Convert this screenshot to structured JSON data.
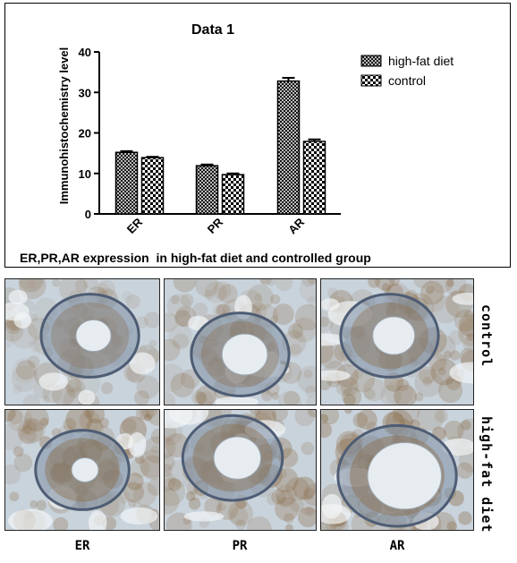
{
  "chart_data": {
    "type": "bar",
    "title": "Data 1",
    "ylabel": "Immunohistochemistry level",
    "xlabel": "",
    "ylim": [
      0,
      40
    ],
    "yticks": [
      0,
      10,
      20,
      30,
      40
    ],
    "categories": [
      "ER",
      "PR",
      "AR"
    ],
    "series": [
      {
        "name": "high-fat diet",
        "values": [
          15.2,
          11.9,
          32.8
        ],
        "errors": [
          0.3,
          0.3,
          0.8
        ],
        "pattern": "dense-crosshatch"
      },
      {
        "name": "control",
        "values": [
          13.9,
          9.7,
          17.9
        ],
        "errors": [
          0.2,
          0.3,
          0.5
        ],
        "pattern": "checker"
      }
    ],
    "legend_position": "top-right",
    "grid": false
  },
  "caption": "ER,PR,AR expression  in high-fat diet and controlled group",
  "panels": {
    "row_labels": [
      "control",
      "high-fat diet"
    ],
    "column_labels": [
      "ER",
      "PR",
      "AR"
    ]
  },
  "colors": {
    "bar_fill": "#ffffff",
    "bar_pattern": "#000000",
    "tissue_background": "#c9d3dc",
    "tissue_stain": "#8a6a45",
    "follicle_lumen": "#e6ecef"
  }
}
